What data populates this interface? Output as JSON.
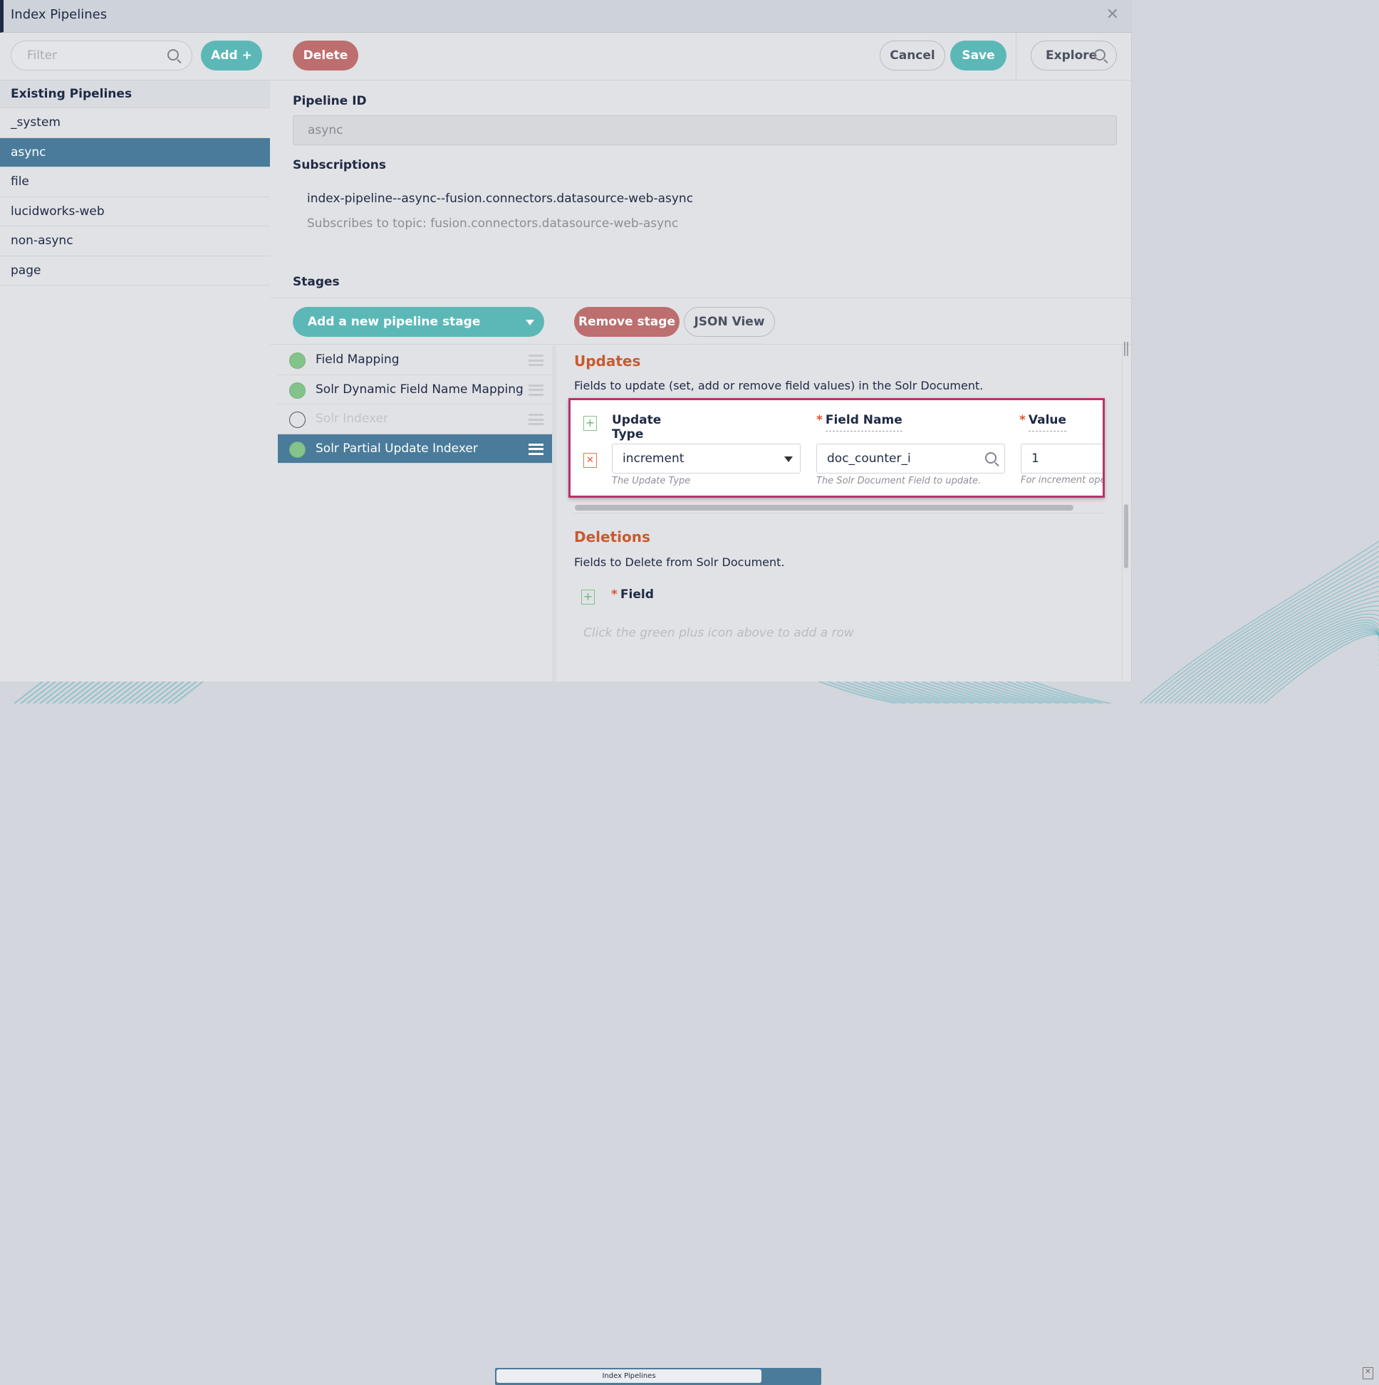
{
  "window": {
    "title": "Index Pipelines",
    "close_icon": "close-icon"
  },
  "toolbar": {
    "filter_placeholder": "Filter",
    "add_label": "Add +",
    "delete_label": "Delete",
    "cancel_label": "Cancel",
    "save_label": "Save",
    "explore_label": "Explore"
  },
  "sidebar": {
    "header": "Existing Pipelines",
    "items": [
      {
        "label": "_system"
      },
      {
        "label": "async",
        "selected": true
      },
      {
        "label": "file"
      },
      {
        "label": "lucidworks-web"
      },
      {
        "label": "non-async"
      },
      {
        "label": "page"
      }
    ]
  },
  "main": {
    "pipeline_id_label": "Pipeline ID",
    "pipeline_id_value": "async",
    "subscriptions_label": "Subscriptions",
    "subscription": "index-pipeline--async--fusion.connectors.datasource-web-async",
    "subscription_topic": "Subscribes to topic: fusion.connectors.datasource-web-async",
    "stages_label": "Stages",
    "add_stage_label": "Add a new pipeline stage",
    "remove_stage_label": "Remove stage",
    "json_view_label": "JSON View",
    "stages": [
      {
        "label": "Field Mapping",
        "enabled": true
      },
      {
        "label": "Solr Dynamic Field Name Mapping",
        "enabled": true
      },
      {
        "label": "Solr Indexer",
        "enabled": false
      },
      {
        "label": "Solr Partial Update Indexer",
        "enabled": true,
        "selected": true
      }
    ]
  },
  "stage_detail": {
    "updates_title": "Updates",
    "updates_desc": "Fields to update (set, add or remove field values) in the Solr Document.",
    "columns": {
      "update_type": "Update Type",
      "field_name": "Field Name",
      "value": "Value",
      "required_mark": "*"
    },
    "row": {
      "update_type": "increment",
      "field_name": "doc_counter_i",
      "value": "1"
    },
    "hints": {
      "update_type": "The Update Type",
      "field_name": "The Solr Document Field to update.",
      "value": "For increment oper"
    },
    "deletions_title": "Deletions",
    "deletions_desc": "Fields to Delete from Solr Document.",
    "deletions_field_label": "Field",
    "deletions_placeholder": "Click the green plus icon above to add a row"
  },
  "taskbar": {
    "tab_label": "Index Pipelines"
  },
  "colors": {
    "accent_teal": "#5cb8b6",
    "danger": "#bd6e6e",
    "selected": "#4a7b9a",
    "section_title": "#c95a2c",
    "highlight": "#b8336a"
  }
}
